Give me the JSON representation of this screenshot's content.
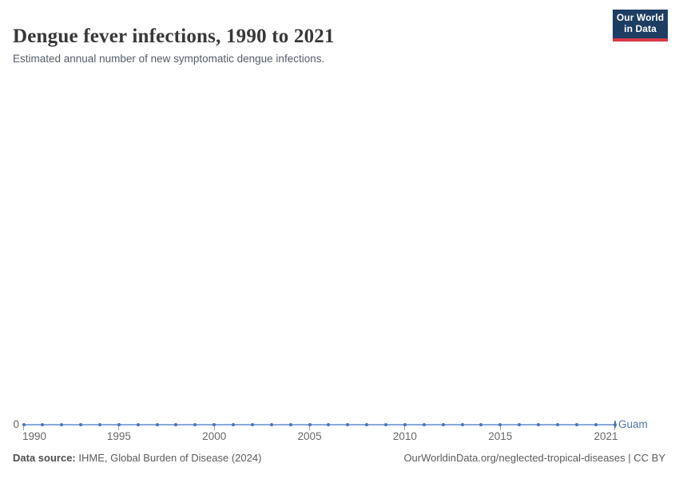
{
  "header": {
    "title": "Dengue fever infections, 1990 to 2021",
    "subtitle": "Estimated annual number of new symptomatic dengue infections."
  },
  "logo": {
    "line1": "Our World",
    "line2": "in Data",
    "bg_color": "#1d3d63",
    "bar_color": "#d6384a"
  },
  "chart_data": {
    "type": "line",
    "title": "Dengue fever infections, 1990 to 2021",
    "subtitle": "Estimated annual number of new symptomatic dengue infections.",
    "series": [
      {
        "name": "Guam",
        "x": [
          1990,
          1991,
          1992,
          1993,
          1994,
          1995,
          1996,
          1997,
          1998,
          1999,
          2000,
          2001,
          2002,
          2003,
          2004,
          2005,
          2006,
          2007,
          2008,
          2009,
          2010,
          2011,
          2012,
          2013,
          2014,
          2015,
          2016,
          2017,
          2018,
          2019,
          2020,
          2021
        ],
        "values": [
          0,
          0,
          0,
          0,
          0,
          0,
          0,
          0,
          0,
          0,
          0,
          0,
          0,
          0,
          0,
          0,
          0,
          0,
          0,
          0,
          0,
          0,
          0,
          0,
          0,
          0,
          0,
          0,
          0,
          0,
          0,
          0
        ]
      }
    ],
    "x_ticks": [
      1990,
      1995,
      2000,
      2005,
      2010,
      2015,
      2021
    ],
    "y_ticks": [
      0
    ],
    "y_zero_label": "0",
    "xlim": [
      1990,
      2021
    ],
    "ylim": [
      0,
      0
    ],
    "grid": false,
    "legend_position": "end-of-line-label",
    "colors": {
      "line": "#8aa9d8",
      "marker": "#4a74b8",
      "series_label": "#4d73b4"
    }
  },
  "footer": {
    "source_label": "Data source:",
    "source_value": "IHME, Global Burden of Disease (2024)",
    "attribution": "OurWorldinData.org/neglected-tropical-diseases | CC BY"
  }
}
